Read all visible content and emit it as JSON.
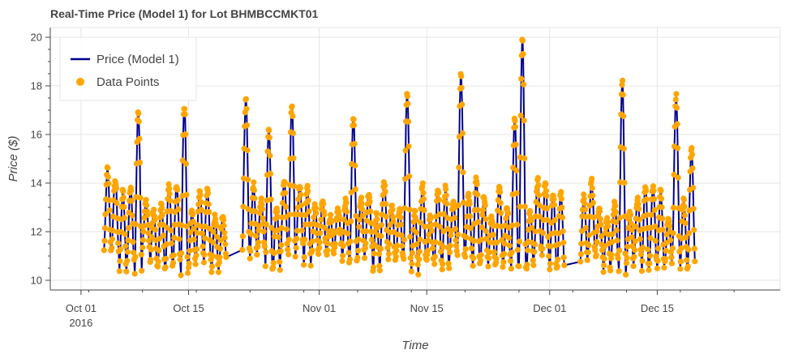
{
  "chart_data": {
    "type": "line",
    "title": "Real-Time Price (Model 1) for Lot BHMBCCMKT01",
    "xlabel": "Time",
    "ylabel": "Price ($)",
    "ylim": [
      9.6,
      20.4
    ],
    "y_ticks": [
      10,
      12,
      14,
      16,
      18,
      20
    ],
    "y_tick_labels": [
      "10",
      "12",
      "14",
      "16",
      "18",
      "20"
    ],
    "x_range": [
      "2016-09-27",
      "2016-12-31"
    ],
    "x_ticks": [
      "2016-10-01",
      "2016-10-15",
      "2016-11-01",
      "2016-11-15",
      "2016-12-01",
      "2016-12-15"
    ],
    "x_tick_labels": [
      "Oct 01",
      "Oct 15",
      "Nov 01",
      "Nov 15",
      "Dec 01",
      "Dec 15"
    ],
    "x_tick_year_label": "2016",
    "grid": true,
    "legend_position": "top-left",
    "colors": {
      "line": "#00008B",
      "points": "#FFA500",
      "grid": "#e5e5e5",
      "axis": "#444444"
    },
    "series": [
      {
        "name": "Price (Model 1)",
        "kind": "line"
      },
      {
        "name": "Data Points",
        "kind": "scatter"
      }
    ],
    "data_ranges": [
      [
        "2016-10-04",
        "2016-10-19"
      ],
      [
        "2016-10-22",
        "2016-11-15"
      ],
      [
        "2016-11-16",
        "2016-12-02"
      ],
      [
        "2016-12-05",
        "2016-12-19"
      ]
    ],
    "daily_base_range": [
      10.3,
      11.5
    ],
    "daily_high_range": [
      12.5,
      14.2
    ],
    "daily_points_per_day": 16,
    "spikes": [
      {
        "date": "2016-10-04",
        "peak": 14.6
      },
      {
        "date": "2016-10-08",
        "peak": 17.0
      },
      {
        "date": "2016-10-14",
        "peak": 17.2
      },
      {
        "date": "2016-10-22",
        "peak": 17.4
      },
      {
        "date": "2016-10-25",
        "peak": 16.3
      },
      {
        "date": "2016-10-28",
        "peak": 17.2
      },
      {
        "date": "2016-11-05",
        "peak": 16.7
      },
      {
        "date": "2016-11-12",
        "peak": 17.7
      },
      {
        "date": "2016-11-19",
        "peak": 18.5
      },
      {
        "date": "2016-11-27",
        "peak": 19.9
      },
      {
        "date": "2016-11-26",
        "peak": 16.7
      },
      {
        "date": "2016-12-10",
        "peak": 18.2
      },
      {
        "date": "2016-12-17",
        "peak": 17.6
      },
      {
        "date": "2016-12-19",
        "peak": 15.4
      }
    ]
  }
}
